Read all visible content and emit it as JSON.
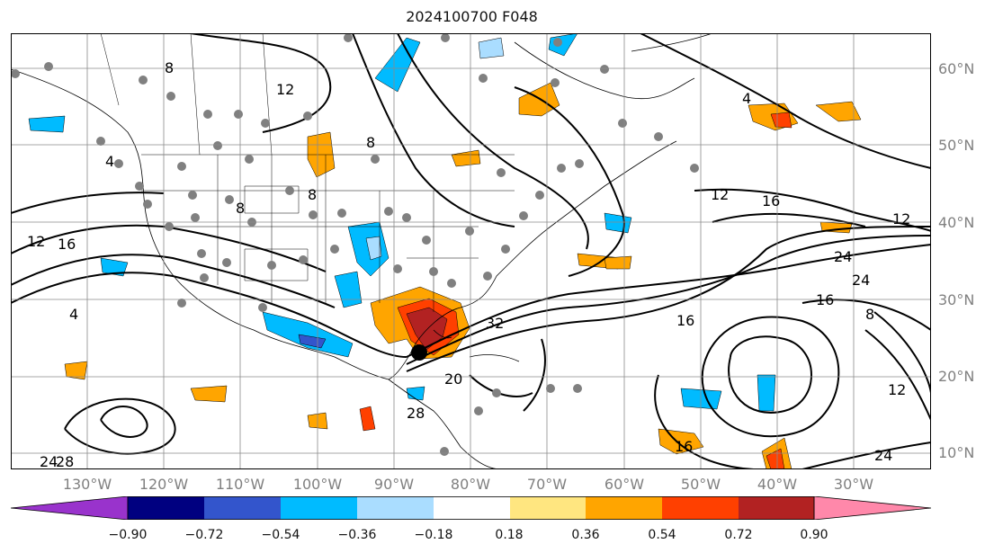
{
  "title": "2024100700 F048",
  "lat_labels": [
    "60°N",
    "50°N",
    "40°N",
    "30°N",
    "20°N",
    "10°N"
  ],
  "lon_labels": [
    "130°W",
    "120°W",
    "110°W",
    "100°W",
    "90°W",
    "80°W",
    "70°W",
    "60°W",
    "50°W",
    "40°W",
    "30°W"
  ],
  "colorbar": {
    "ticks": [
      "−0.90",
      "−0.72",
      "−0.54",
      "−0.36",
      "−0.18",
      "0.18",
      "0.36",
      "0.54",
      "0.72",
      "0.90"
    ],
    "colors": [
      "#9933cc",
      "#000080",
      "#3355cc",
      "#00bbff",
      "#aaddff",
      "#ffffff",
      "#ffe680",
      "#ffa500",
      "#ff4000",
      "#b22222",
      "#ff88aa"
    ],
    "extend": "both"
  },
  "contour_labels": [
    "8",
    "12",
    "4",
    "12",
    "8",
    "16",
    "16",
    "4",
    "12",
    "8",
    "8",
    "12",
    "16",
    "24",
    "24",
    "16",
    "32",
    "20",
    "28",
    "24",
    "16",
    "12",
    "28",
    "24",
    "4",
    "8"
  ],
  "map": {
    "extent_lon": [
      -142,
      -22
    ],
    "extent_lat": [
      7.5,
      64.5
    ],
    "overlay": "storm center marker near 23°N 88°W"
  }
}
